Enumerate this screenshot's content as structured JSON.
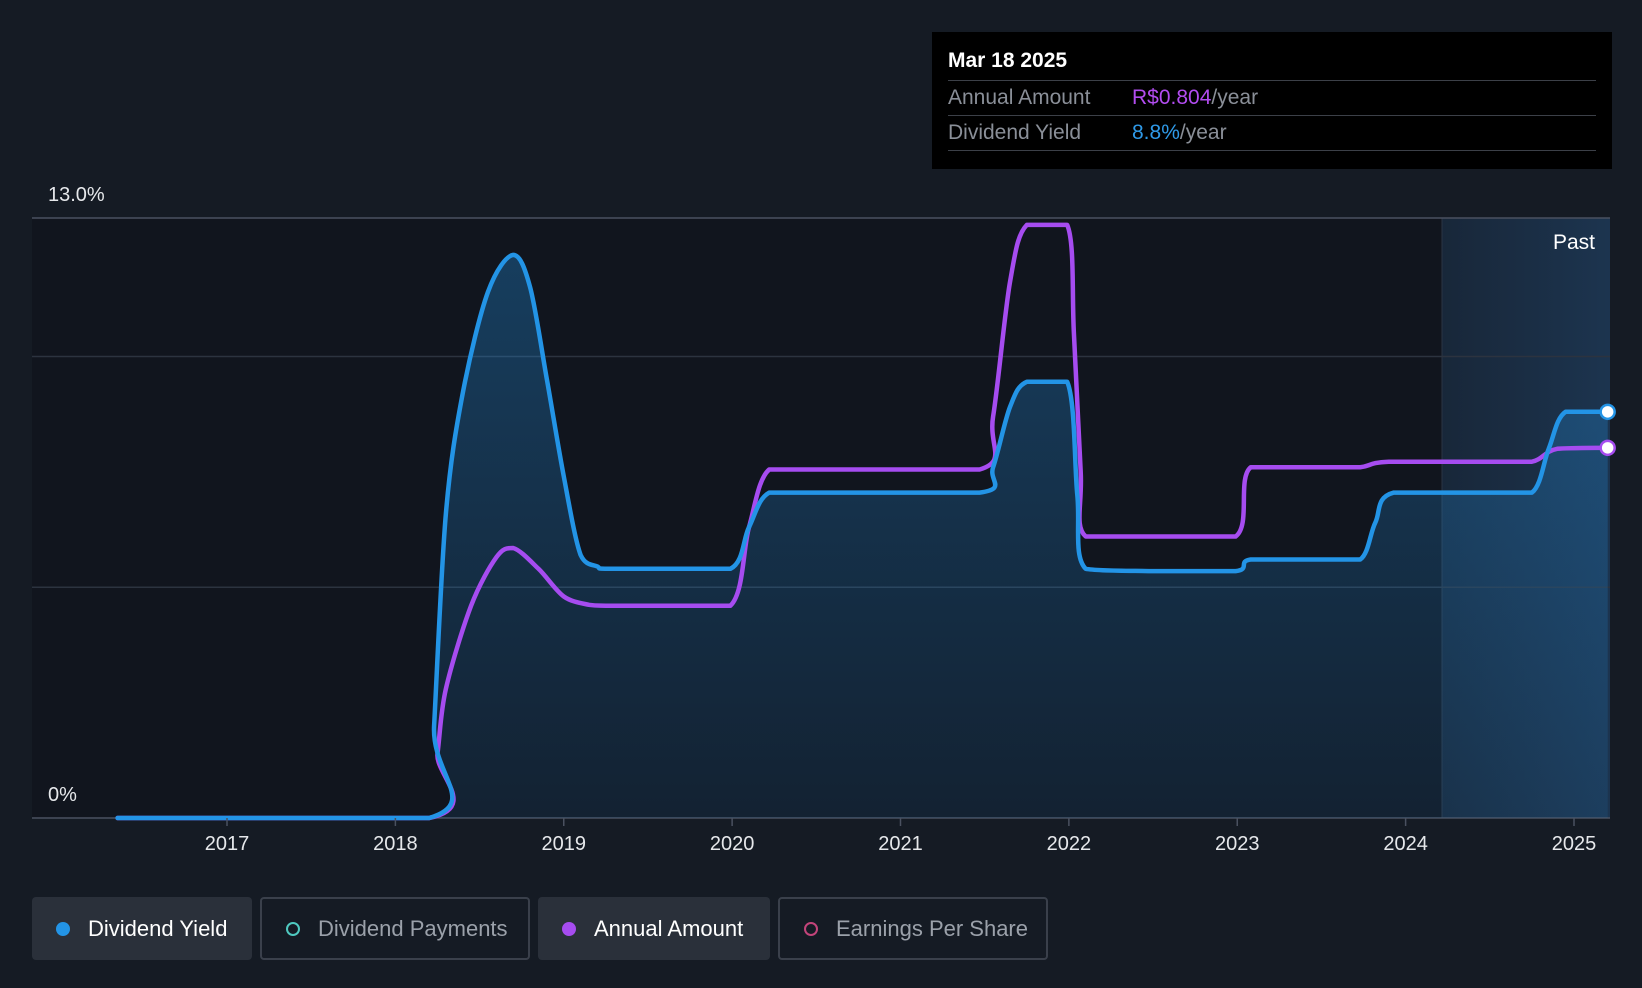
{
  "tooltip": {
    "date": "Mar 18 2025",
    "rows": [
      {
        "label": "Annual Amount",
        "value": "R$0.804",
        "unit": "/year"
      },
      {
        "label": "Dividend Yield",
        "value": "8.8%",
        "unit": "/year"
      }
    ]
  },
  "past_label": "Past",
  "legend": [
    {
      "label": "Dividend Yield",
      "color": "#2394e6",
      "active": true
    },
    {
      "label": "Dividend Payments",
      "color": "#4fc9c0",
      "active": false
    },
    {
      "label": "Annual Amount",
      "color": "#a64cf0",
      "active": true
    },
    {
      "label": "Earnings Per Share",
      "color": "#c2447a",
      "active": false
    }
  ],
  "chart_data": {
    "type": "line",
    "y_ticks": [
      "13.0%",
      "0%"
    ],
    "ylim": [
      0,
      13
    ],
    "x_ticks": [
      "2017",
      "2018",
      "2019",
      "2020",
      "2021",
      "2022",
      "2023",
      "2024",
      "2025"
    ],
    "xlim": [
      2016.2,
      2025.2
    ],
    "series": [
      {
        "name": "Dividend Yield",
        "color": "#2394e6",
        "points": [
          [
            2016.35,
            0
          ],
          [
            2018.2,
            0
          ],
          [
            2018.23,
            2.0
          ],
          [
            2018.3,
            6.6
          ],
          [
            2018.4,
            9.2
          ],
          [
            2018.55,
            11.4
          ],
          [
            2018.7,
            12.2
          ],
          [
            2018.8,
            11.5
          ],
          [
            2018.9,
            9.5
          ],
          [
            2019.0,
            7.4
          ],
          [
            2019.1,
            5.7
          ],
          [
            2019.2,
            5.45
          ],
          [
            2019.25,
            5.4
          ],
          [
            2019.6,
            5.4
          ],
          [
            2019.99,
            5.4
          ],
          [
            2020.1,
            6.3
          ],
          [
            2020.22,
            7.05
          ],
          [
            2020.5,
            7.05
          ],
          [
            2021.47,
            7.05
          ],
          [
            2021.55,
            7.6
          ],
          [
            2021.65,
            8.9
          ],
          [
            2021.75,
            9.45
          ],
          [
            2021.99,
            9.45
          ],
          [
            2022.05,
            7.0
          ],
          [
            2022.1,
            5.4
          ],
          [
            2022.5,
            5.35
          ],
          [
            2022.99,
            5.35
          ],
          [
            2023.08,
            5.6
          ],
          [
            2023.5,
            5.6
          ],
          [
            2023.73,
            5.6
          ],
          [
            2023.82,
            6.4
          ],
          [
            2023.93,
            7.05
          ],
          [
            2024.5,
            7.05
          ],
          [
            2024.75,
            7.05
          ],
          [
            2024.85,
            8.0
          ],
          [
            2024.95,
            8.8
          ],
          [
            2025.2,
            8.8
          ]
        ]
      },
      {
        "name": "Annual Amount",
        "color": "#a64cf0",
        "points": [
          [
            2016.35,
            0
          ],
          [
            2018.2,
            0
          ],
          [
            2018.25,
            1.4
          ],
          [
            2018.3,
            2.8
          ],
          [
            2018.45,
            4.6
          ],
          [
            2018.6,
            5.65
          ],
          [
            2018.7,
            5.85
          ],
          [
            2018.85,
            5.4
          ],
          [
            2019.0,
            4.8
          ],
          [
            2019.15,
            4.62
          ],
          [
            2019.25,
            4.6
          ],
          [
            2019.6,
            4.6
          ],
          [
            2019.99,
            4.6
          ],
          [
            2020.1,
            6.3
          ],
          [
            2020.22,
            7.55
          ],
          [
            2020.5,
            7.55
          ],
          [
            2021.47,
            7.55
          ],
          [
            2021.55,
            8.7
          ],
          [
            2021.65,
            11.6
          ],
          [
            2021.75,
            12.85
          ],
          [
            2021.99,
            12.85
          ],
          [
            2022.03,
            10.5
          ],
          [
            2022.07,
            7.5
          ],
          [
            2022.1,
            6.1
          ],
          [
            2022.5,
            6.1
          ],
          [
            2022.99,
            6.1
          ],
          [
            2023.08,
            7.6
          ],
          [
            2023.5,
            7.6
          ],
          [
            2023.73,
            7.6
          ],
          [
            2023.9,
            7.72
          ],
          [
            2024.5,
            7.72
          ],
          [
            2024.75,
            7.72
          ],
          [
            2024.9,
            8.0
          ],
          [
            2025.2,
            8.02
          ]
        ]
      }
    ]
  }
}
